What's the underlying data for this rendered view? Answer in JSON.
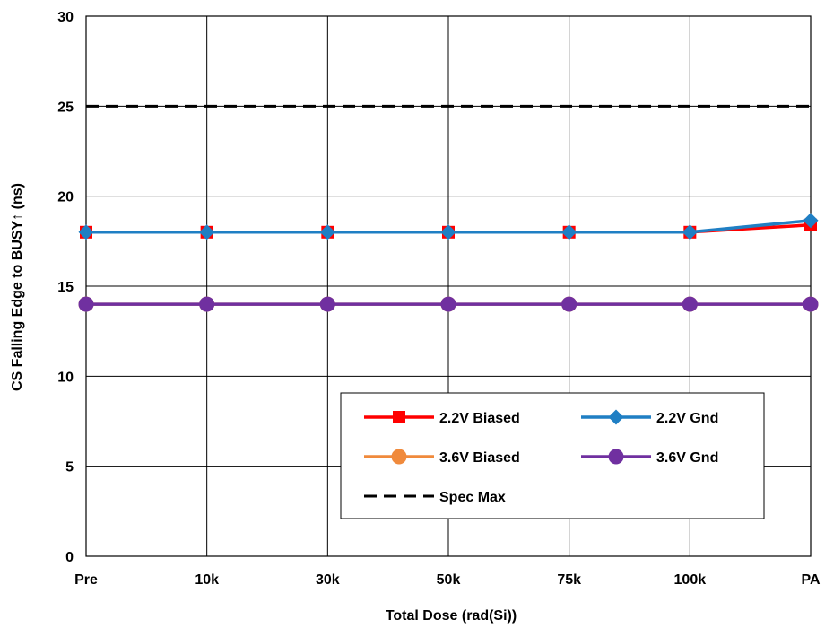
{
  "chart_data": {
    "type": "line",
    "categories": [
      "Pre",
      "10k",
      "30k",
      "50k",
      "75k",
      "100k",
      "PA"
    ],
    "xlabel": "Total Dose (rad(Si))",
    "ylabel": "CS Falling Edge to BUSY↑ (ns)",
    "ylim": [
      0,
      30
    ],
    "yticks": [
      0,
      5,
      10,
      15,
      20,
      25,
      30
    ],
    "grid": true,
    "legend_position": "bottom-right",
    "series": [
      {
        "name": "2.2V Biased",
        "values": [
          18,
          18,
          18,
          18,
          18,
          18,
          18.4
        ],
        "color": "#ff0000",
        "marker": "square",
        "dashed": false
      },
      {
        "name": "2.2V Gnd",
        "values": [
          18,
          18,
          18,
          18,
          18,
          18,
          18.65
        ],
        "color": "#1f7fc4",
        "marker": "diamond",
        "dashed": false
      },
      {
        "name": "3.6V Biased",
        "values": [
          14,
          14,
          14,
          14,
          14,
          14,
          14
        ],
        "color": "#f08a3c",
        "marker": "circle",
        "dashed": false
      },
      {
        "name": "3.6V Gnd",
        "values": [
          14,
          14,
          14,
          14,
          14,
          14,
          14
        ],
        "color": "#7030a0",
        "marker": "circle",
        "dashed": false
      },
      {
        "name": "Spec Max",
        "values": [
          25,
          25,
          25,
          25,
          25,
          25,
          25
        ],
        "color": "#000000",
        "marker": "none",
        "dashed": true
      }
    ]
  }
}
